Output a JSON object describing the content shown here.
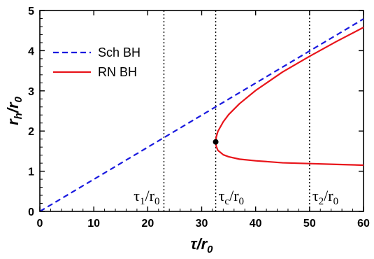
{
  "chart_data": {
    "type": "line",
    "title": "",
    "xlabel": {
      "base": "τ",
      "denom_base": "r",
      "denom_sub": "0"
    },
    "ylabel": {
      "base": "r",
      "sub": "h",
      "denom_base": "r",
      "denom_sub": "0"
    },
    "xlim": [
      0,
      60
    ],
    "ylim": [
      0,
      5
    ],
    "xticks": [
      0,
      10,
      20,
      30,
      40,
      50,
      60
    ],
    "yticks": [
      0,
      1,
      2,
      3,
      4,
      5
    ],
    "grid": false,
    "legend": "top-left",
    "series": [
      {
        "name": "Sch BH",
        "color": "#1a1adf",
        "style": "dashed",
        "x": [
          0,
          60
        ],
        "y": [
          0,
          4.79
        ]
      },
      {
        "name": "RN BH",
        "color": "#e8141a",
        "style": "solid",
        "branch": "upper",
        "x": [
          32.6,
          32.7,
          33.0,
          34,
          35,
          37,
          40,
          45,
          50,
          55,
          60
        ],
        "y": [
          1.73,
          1.85,
          1.99,
          2.23,
          2.41,
          2.68,
          3.01,
          3.47,
          3.86,
          4.23,
          4.58
        ]
      },
      {
        "name": "",
        "color": "#e8141a",
        "style": "solid",
        "branch": "lower",
        "x": [
          32.6,
          32.7,
          33.0,
          34,
          35,
          37,
          40,
          45,
          50,
          55,
          60
        ],
        "y": [
          1.73,
          1.62,
          1.52,
          1.41,
          1.36,
          1.3,
          1.26,
          1.21,
          1.19,
          1.17,
          1.15
        ]
      }
    ],
    "critical_point": {
      "x": 32.6,
      "y": 1.73,
      "color": "#000000"
    },
    "vlines": [
      {
        "x": 23.0,
        "label_base": "τ",
        "label_sub": "1",
        "denom_base": "r",
        "denom_sub": "0"
      },
      {
        "x": 32.6,
        "label_base": "τ",
        "label_sub": "c",
        "denom_base": "r",
        "denom_sub": "0"
      },
      {
        "x": 50.0,
        "label_base": "τ",
        "label_sub": "2",
        "denom_base": "r",
        "denom_sub": "0"
      }
    ]
  }
}
